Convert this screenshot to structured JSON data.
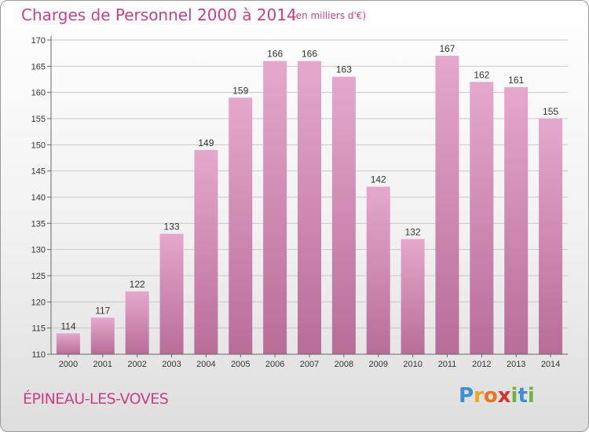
{
  "header": {
    "title": "Charges de Personnel 2000 à 2014",
    "subtitle": "(en milliers d'€)"
  },
  "footer": {
    "commune": "ÉPINEAU-LES-VOVES",
    "logo_letters": [
      "P",
      "r",
      "o",
      "x",
      "i",
      "t",
      "i"
    ],
    "logo_colors": [
      "#3a8fd6",
      "#f0a51b",
      "#e8761c",
      "#d8332a",
      "#6cb33f",
      "#3a8fd6",
      "#6cb33f"
    ]
  },
  "colors": {
    "bar_top": "#e5a8cc",
    "bar_bottom": "#b86d98",
    "accent": "#cc3e86",
    "grid": "#c8c8c8",
    "text": "#333333"
  },
  "chart_data": {
    "type": "bar",
    "categories": [
      "2000",
      "2001",
      "2002",
      "2003",
      "2004",
      "2005",
      "2006",
      "2007",
      "2008",
      "2009",
      "2010",
      "2011",
      "2012",
      "2013",
      "2014"
    ],
    "values": [
      114,
      117,
      122,
      133,
      149,
      159,
      166,
      166,
      163,
      142,
      132,
      167,
      162,
      161,
      155
    ],
    "ylim": [
      110,
      170
    ],
    "yticks": [
      110,
      115,
      120,
      125,
      130,
      135,
      140,
      145,
      150,
      155,
      160,
      165,
      170
    ],
    "grid": true,
    "data_labels": true
  }
}
